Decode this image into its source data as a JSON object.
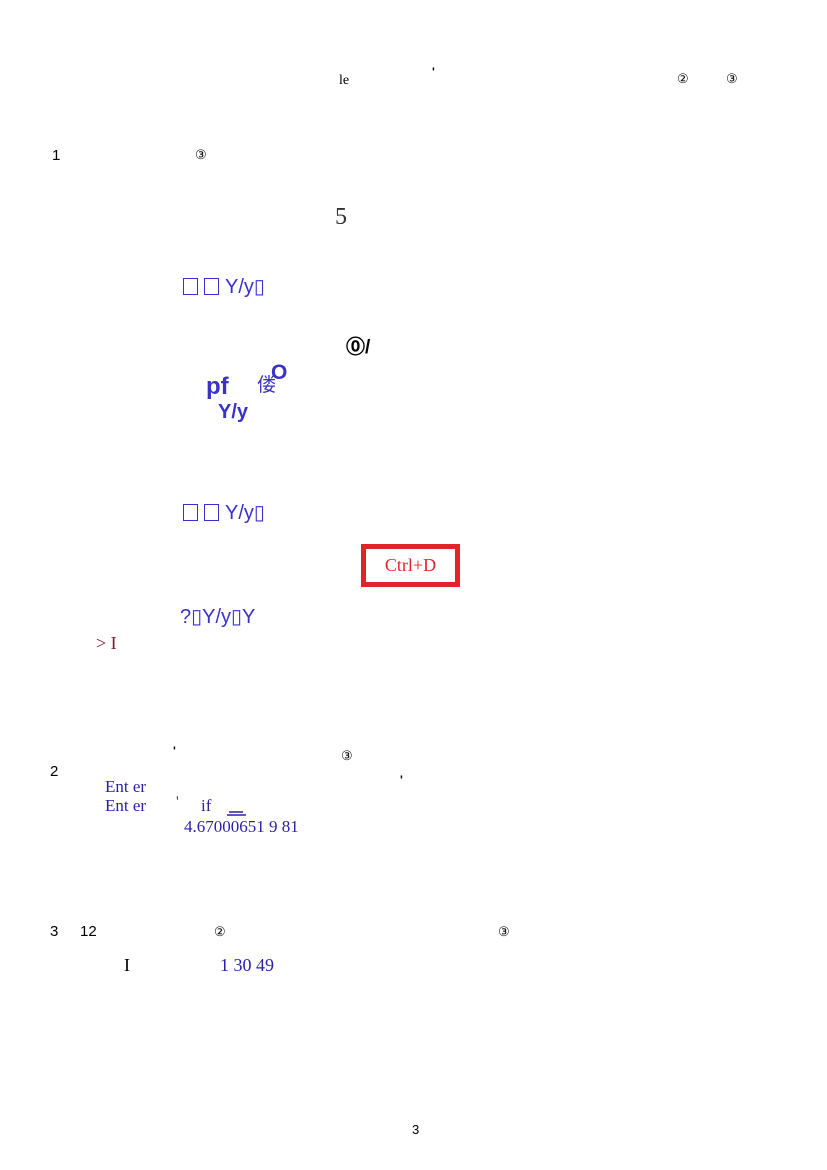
{
  "header": {
    "text_le": "le",
    "tick": "'",
    "circ2": "②",
    "circ3": "③"
  },
  "section1": {
    "number": "1",
    "circ3": "③",
    "big_digit": "5",
    "line1_text": "Y/y▯",
    "symbol": "⓪/",
    "pf": "pf",
    "kanji": "偻",
    "sup_o": "O",
    "yy": "Y/y",
    "line2_text": "Y/y▯",
    "stamp_text": "Ctrl+D",
    "line3_text": "?▯Y/y▯Y",
    "prompt": "> I"
  },
  "section2": {
    "tick_top": "'",
    "circ3": "③",
    "number": "2",
    "enter1": "Ent er",
    "tick_right": "'",
    "enter2": "Ent er",
    "tick_mid": "'",
    "if_text": "if",
    "value_line": "4.67000651    9    81"
  },
  "section3": {
    "number": "3",
    "count": "12",
    "circ2": "②",
    "circ3": "③",
    "roman": "I",
    "values": "1    30    49"
  },
  "footer": {
    "page_number": "3"
  }
}
